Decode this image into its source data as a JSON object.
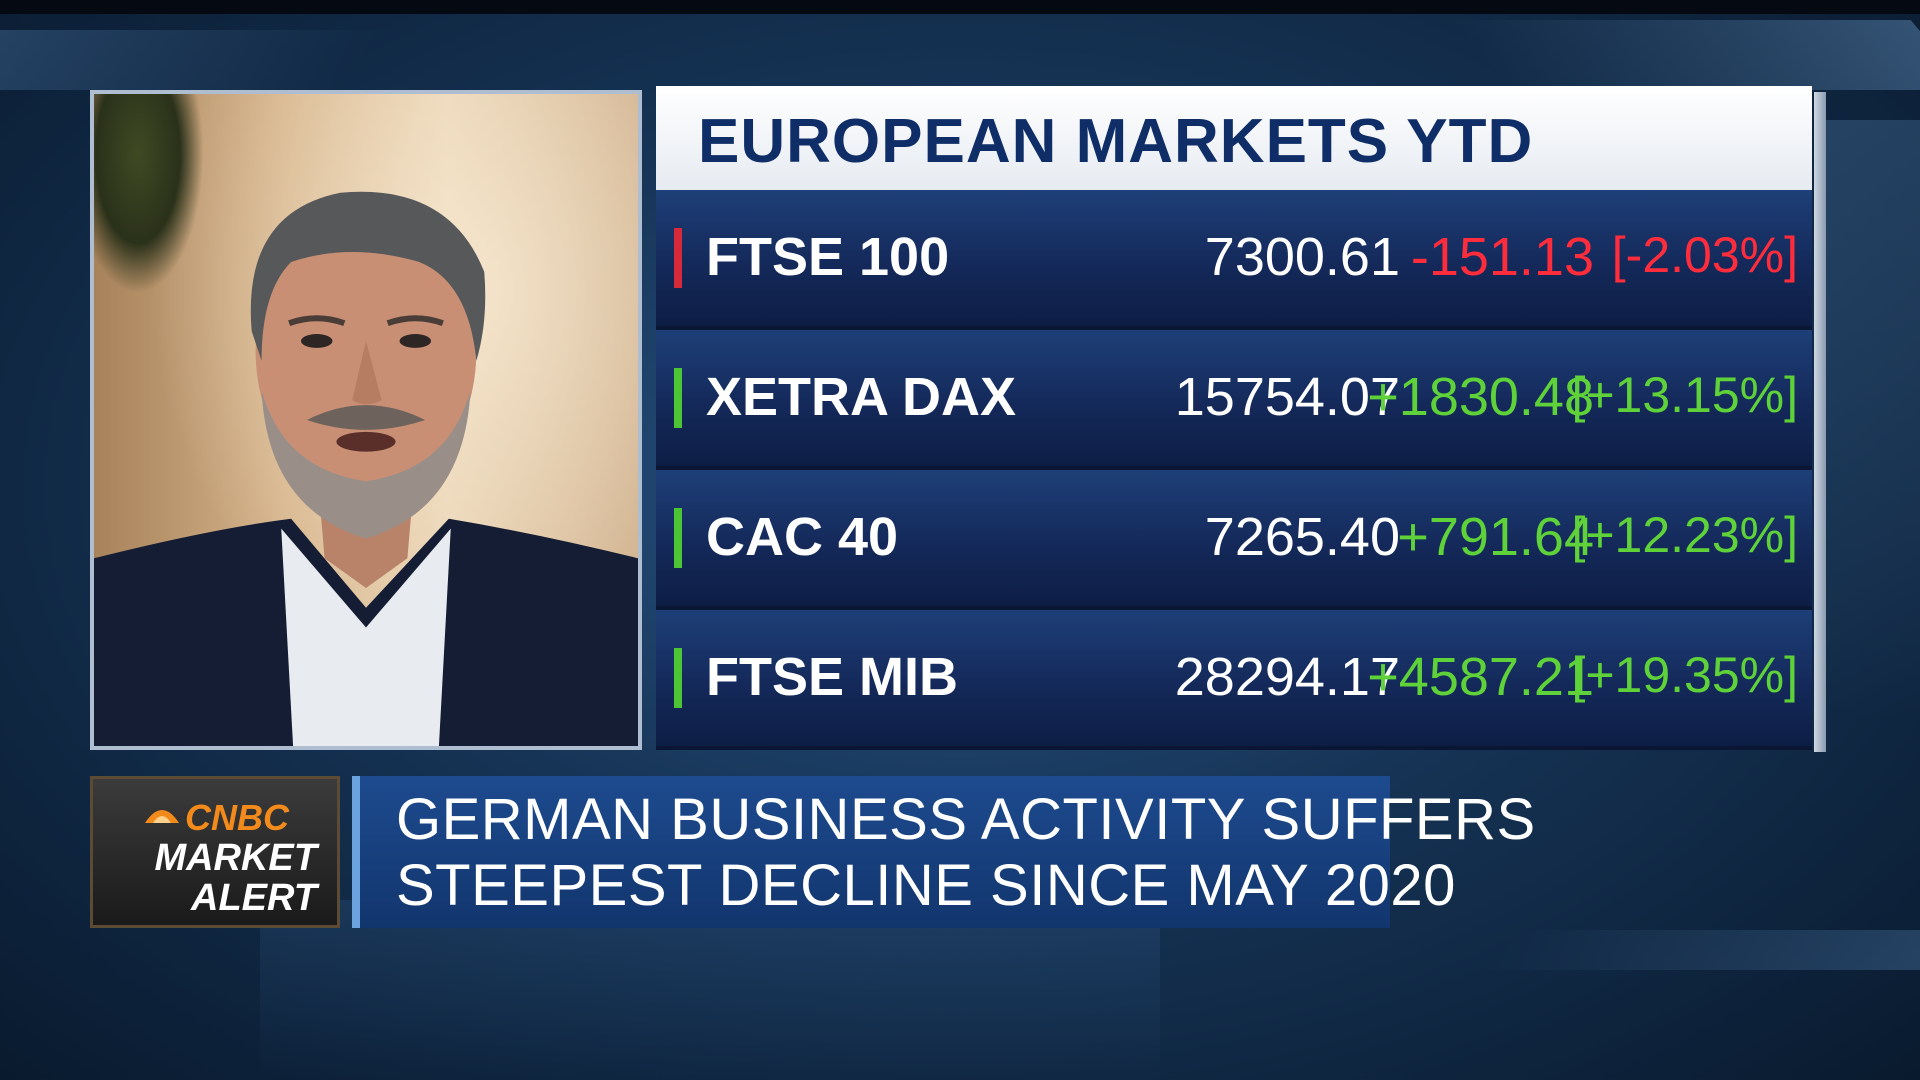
{
  "colors": {
    "positive": "#5fd23a",
    "negative": "#ff2d3c",
    "negative_accent": "#d62a3a",
    "positive_accent": "#4cc634",
    "header_text": "#0f2d66",
    "cnbc_orange": "#f28a1c"
  },
  "panel": {
    "title": "EUROPEAN MARKETS YTD",
    "rows": [
      {
        "name": "FTSE 100",
        "value": "7300.61",
        "change": "-151.13",
        "pct": "[-2.03%]",
        "direction": "down"
      },
      {
        "name": "XETRA DAX",
        "value": "15754.07",
        "change": "+1830.48",
        "pct": "[+13.15%]",
        "direction": "up"
      },
      {
        "name": "CAC 40",
        "value": "7265.40",
        "change": "+791.64",
        "pct": "[+12.23%]",
        "direction": "up"
      },
      {
        "name": "FTSE MIB",
        "value": "28294.17",
        "change": "+4587.21",
        "pct": "[+19.35%]",
        "direction": "up"
      }
    ]
  },
  "badge": {
    "brand": "CNBC",
    "line1": "MARKET",
    "line2": "ALERT",
    "icon": "peacock-icon"
  },
  "headline": {
    "line1": "GERMAN BUSINESS ACTIVITY SUFFERS",
    "line2": "STEEPEST DECLINE SINCE MAY 2020"
  }
}
